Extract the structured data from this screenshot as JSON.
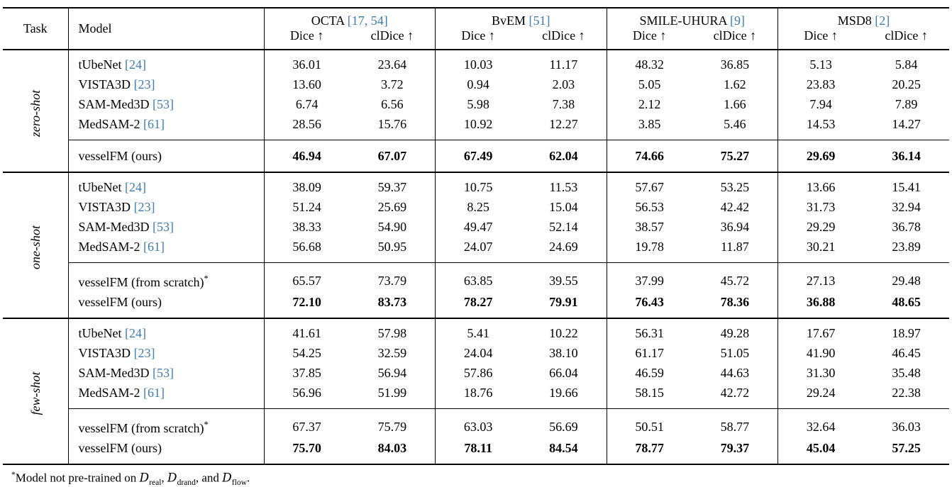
{
  "colors": {
    "background": "#FFFFFF",
    "text": "#000000",
    "citation": "#3E7CB1"
  },
  "header": {
    "task_label": "Task",
    "model_label": "Model",
    "groups": [
      {
        "name": "OCTA",
        "cite": "[17, 54]"
      },
      {
        "name": "BvEM",
        "cite": "[51]"
      },
      {
        "name": "SMILE-UHURA",
        "cite": "[9]"
      },
      {
        "name": "MSD8",
        "cite": "[2]"
      }
    ],
    "metrics": [
      "Dice ↑",
      "clDice ↑"
    ]
  },
  "sections": [
    {
      "task": "zero-shot",
      "baseline_rows": [
        {
          "model": "tUbeNet",
          "cite": "[24]",
          "values": [
            "36.01",
            "23.64",
            "10.03",
            "11.17",
            "48.32",
            "36.85",
            "5.13",
            "5.84"
          ]
        },
        {
          "model": "VISTA3D",
          "cite": "[23]",
          "values": [
            "13.60",
            "3.72",
            "0.94",
            "2.03",
            "5.05",
            "1.62",
            "23.83",
            "20.25"
          ]
        },
        {
          "model": "SAM-Med3D",
          "cite": "[53]",
          "values": [
            "6.74",
            "6.56",
            "5.98",
            "7.38",
            "2.12",
            "1.66",
            "7.94",
            "7.89"
          ]
        },
        {
          "model": "MedSAM-2",
          "cite": "[61]",
          "values": [
            "28.56",
            "15.76",
            "10.92",
            "12.27",
            "3.85",
            "5.46",
            "14.53",
            "14.27"
          ]
        }
      ],
      "ours_rows": [
        {
          "model": "vesselFM (ours)",
          "bold": true,
          "values": [
            "46.94",
            "67.07",
            "67.49",
            "62.04",
            "74.66",
            "75.27",
            "29.69",
            "36.14"
          ]
        }
      ]
    },
    {
      "task": "one-shot",
      "baseline_rows": [
        {
          "model": "tUbeNet",
          "cite": "[24]",
          "values": [
            "38.09",
            "59.37",
            "10.75",
            "11.53",
            "57.67",
            "53.25",
            "13.66",
            "15.41"
          ]
        },
        {
          "model": "VISTA3D",
          "cite": "[23]",
          "values": [
            "51.24",
            "25.69",
            "8.25",
            "15.04",
            "56.53",
            "42.42",
            "31.73",
            "32.94"
          ]
        },
        {
          "model": "SAM-Med3D",
          "cite": "[53]",
          "values": [
            "38.33",
            "54.90",
            "49.47",
            "52.14",
            "38.57",
            "36.94",
            "29.29",
            "36.78"
          ]
        },
        {
          "model": "MedSAM-2",
          "cite": "[61]",
          "values": [
            "56.68",
            "50.95",
            "24.07",
            "24.69",
            "19.78",
            "11.87",
            "30.21",
            "23.89"
          ]
        }
      ],
      "ours_rows": [
        {
          "model": "vesselFM (from scratch)",
          "superscript": "*",
          "bold": false,
          "values": [
            "65.57",
            "73.79",
            "63.85",
            "39.55",
            "37.99",
            "45.72",
            "27.13",
            "29.48"
          ]
        },
        {
          "model": "vesselFM (ours)",
          "bold": true,
          "values": [
            "72.10",
            "83.73",
            "78.27",
            "79.91",
            "76.43",
            "78.36",
            "36.88",
            "48.65"
          ]
        }
      ]
    },
    {
      "task": "few-shot",
      "baseline_rows": [
        {
          "model": "tUbeNet",
          "cite": "[24]",
          "values": [
            "41.61",
            "57.98",
            "5.41",
            "10.22",
            "56.31",
            "49.28",
            "17.67",
            "18.97"
          ]
        },
        {
          "model": "VISTA3D",
          "cite": "[23]",
          "values": [
            "54.25",
            "32.59",
            "24.04",
            "38.10",
            "61.17",
            "51.05",
            "41.90",
            "46.45"
          ]
        },
        {
          "model": "SAM-Med3D",
          "cite": "[53]",
          "values": [
            "37.85",
            "56.94",
            "57.86",
            "66.04",
            "46.59",
            "44.63",
            "31.30",
            "35.48"
          ]
        },
        {
          "model": "MedSAM-2",
          "cite": "[61]",
          "values": [
            "56.96",
            "51.99",
            "18.76",
            "19.66",
            "58.15",
            "42.72",
            "29.24",
            "22.38"
          ]
        }
      ],
      "ours_rows": [
        {
          "model": "vesselFM (from scratch)",
          "superscript": "*",
          "bold": false,
          "values": [
            "67.37",
            "75.79",
            "63.03",
            "56.69",
            "50.51",
            "58.77",
            "32.64",
            "36.03"
          ]
        },
        {
          "model": "vesselFM (ours)",
          "bold": true,
          "values": [
            "75.70",
            "84.03",
            "78.11",
            "84.54",
            "78.77",
            "79.37",
            "45.04",
            "57.25"
          ]
        }
      ]
    }
  ],
  "footnote": {
    "marker": "*",
    "segments": [
      {
        "type": "text",
        "text": "Model not pre-trained on "
      },
      {
        "type": "math",
        "symbol": "D",
        "sub": "real"
      },
      {
        "type": "text",
        "text": ", "
      },
      {
        "type": "math",
        "symbol": "D",
        "sub": "drand"
      },
      {
        "type": "text",
        "text": ", and "
      },
      {
        "type": "math",
        "symbol": "D",
        "sub": "flow"
      },
      {
        "type": "text",
        "text": "."
      }
    ]
  }
}
